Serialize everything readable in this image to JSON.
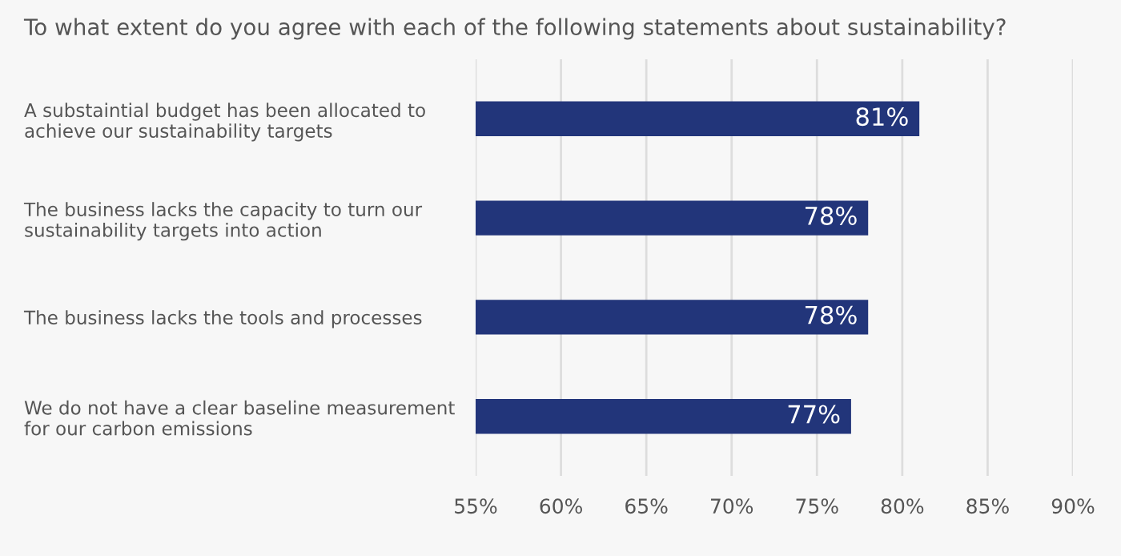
{
  "chart_data": {
    "type": "bar",
    "orientation": "horizontal",
    "title": "To what extent do you agree with each of the following statements about sustainability?",
    "categories": [
      "A substaintial budget has been allocated to\nachieve our sustainability targets",
      "The business lacks the capacity to turn our\nsustainability targets into action",
      "The business lacks the tools and processes",
      "We do not have a clear baseline measurement\nfor our carbon emissions"
    ],
    "values": [
      81,
      78,
      78,
      77
    ],
    "color": "#22357a",
    "value_labels": [
      "81%",
      "78%",
      "78%",
      "77%"
    ],
    "xlim": [
      55,
      90
    ],
    "xticks": [
      {
        "value": 55,
        "label": "55%"
      },
      {
        "value": 60,
        "label": "60%"
      },
      {
        "value": 65,
        "label": "65%"
      },
      {
        "value": 70,
        "label": "70%"
      },
      {
        "value": 75,
        "label": "75%"
      },
      {
        "value": 80,
        "label": "80%"
      },
      {
        "value": 85,
        "label": "85%"
      },
      {
        "value": 90,
        "label": "90%"
      }
    ],
    "grid": "x"
  }
}
